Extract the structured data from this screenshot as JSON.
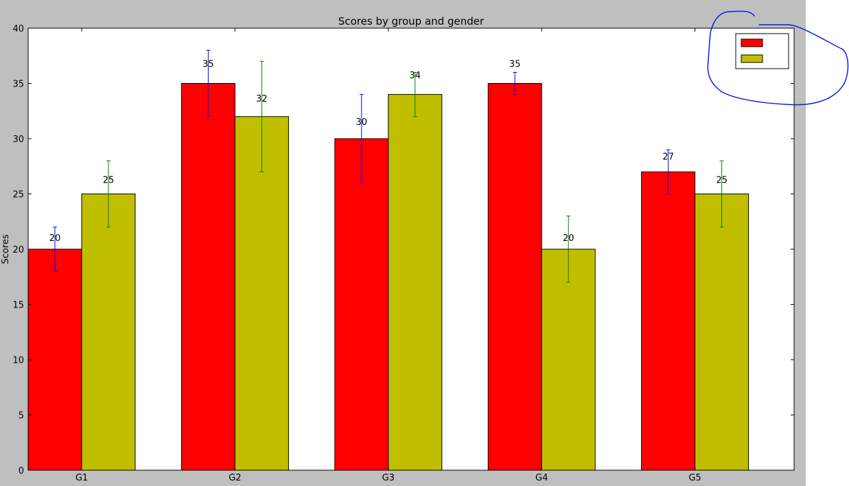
{
  "colors": {
    "figure_background": "#bfbfbf",
    "plot_background": "#ffffff",
    "outside_area": "#ffffff",
    "annotation_ink": "#0a1fe0"
  },
  "chart_data": {
    "type": "bar",
    "title": "Scores by group and gender",
    "xlabel": "",
    "ylabel": "Scores",
    "categories": [
      "G1",
      "G2",
      "G3",
      "G4",
      "G5"
    ],
    "ylim": [
      0,
      40
    ],
    "yticks": [
      0,
      5,
      10,
      15,
      20,
      25,
      30,
      35,
      40
    ],
    "grid": false,
    "legend_position": "top-right",
    "series": [
      {
        "name": "",
        "color": "#ff0000",
        "errorbar_color": "#0000ff",
        "values": [
          20,
          35,
          30,
          35,
          27
        ],
        "errors": [
          2,
          3,
          4,
          1,
          2
        ],
        "data_labels": [
          "20",
          "35",
          "30",
          "35",
          "27"
        ]
      },
      {
        "name": "",
        "color": "#bfbf00",
        "errorbar_color": "#008000",
        "values": [
          25,
          32,
          34,
          20,
          25
        ],
        "errors": [
          3,
          5,
          2,
          3,
          3
        ],
        "data_labels": [
          "25",
          "32",
          "34",
          "20",
          "25"
        ]
      }
    ]
  }
}
